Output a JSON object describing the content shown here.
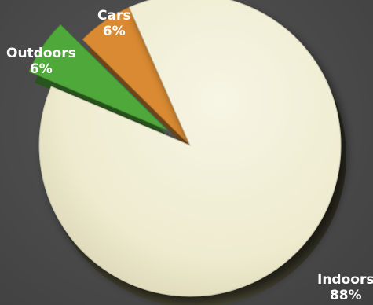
{
  "chart_data": {
    "type": "pie",
    "title": "",
    "slices": [
      {
        "label": "Indoors",
        "value": 88,
        "value_label": "88%",
        "color": "#eeebcf",
        "exploded": false
      },
      {
        "label": "Cars",
        "value": 6,
        "value_label": "6%",
        "color": "#d98a32",
        "exploded": false
      },
      {
        "label": "Outdoors",
        "value": 6,
        "value_label": "6%",
        "color": "#4fa83a",
        "exploded": true
      }
    ],
    "legend": "none",
    "style": "3d-exploded"
  },
  "colors": {
    "background": "#4a4a4a",
    "label_text": "#ffffff"
  }
}
